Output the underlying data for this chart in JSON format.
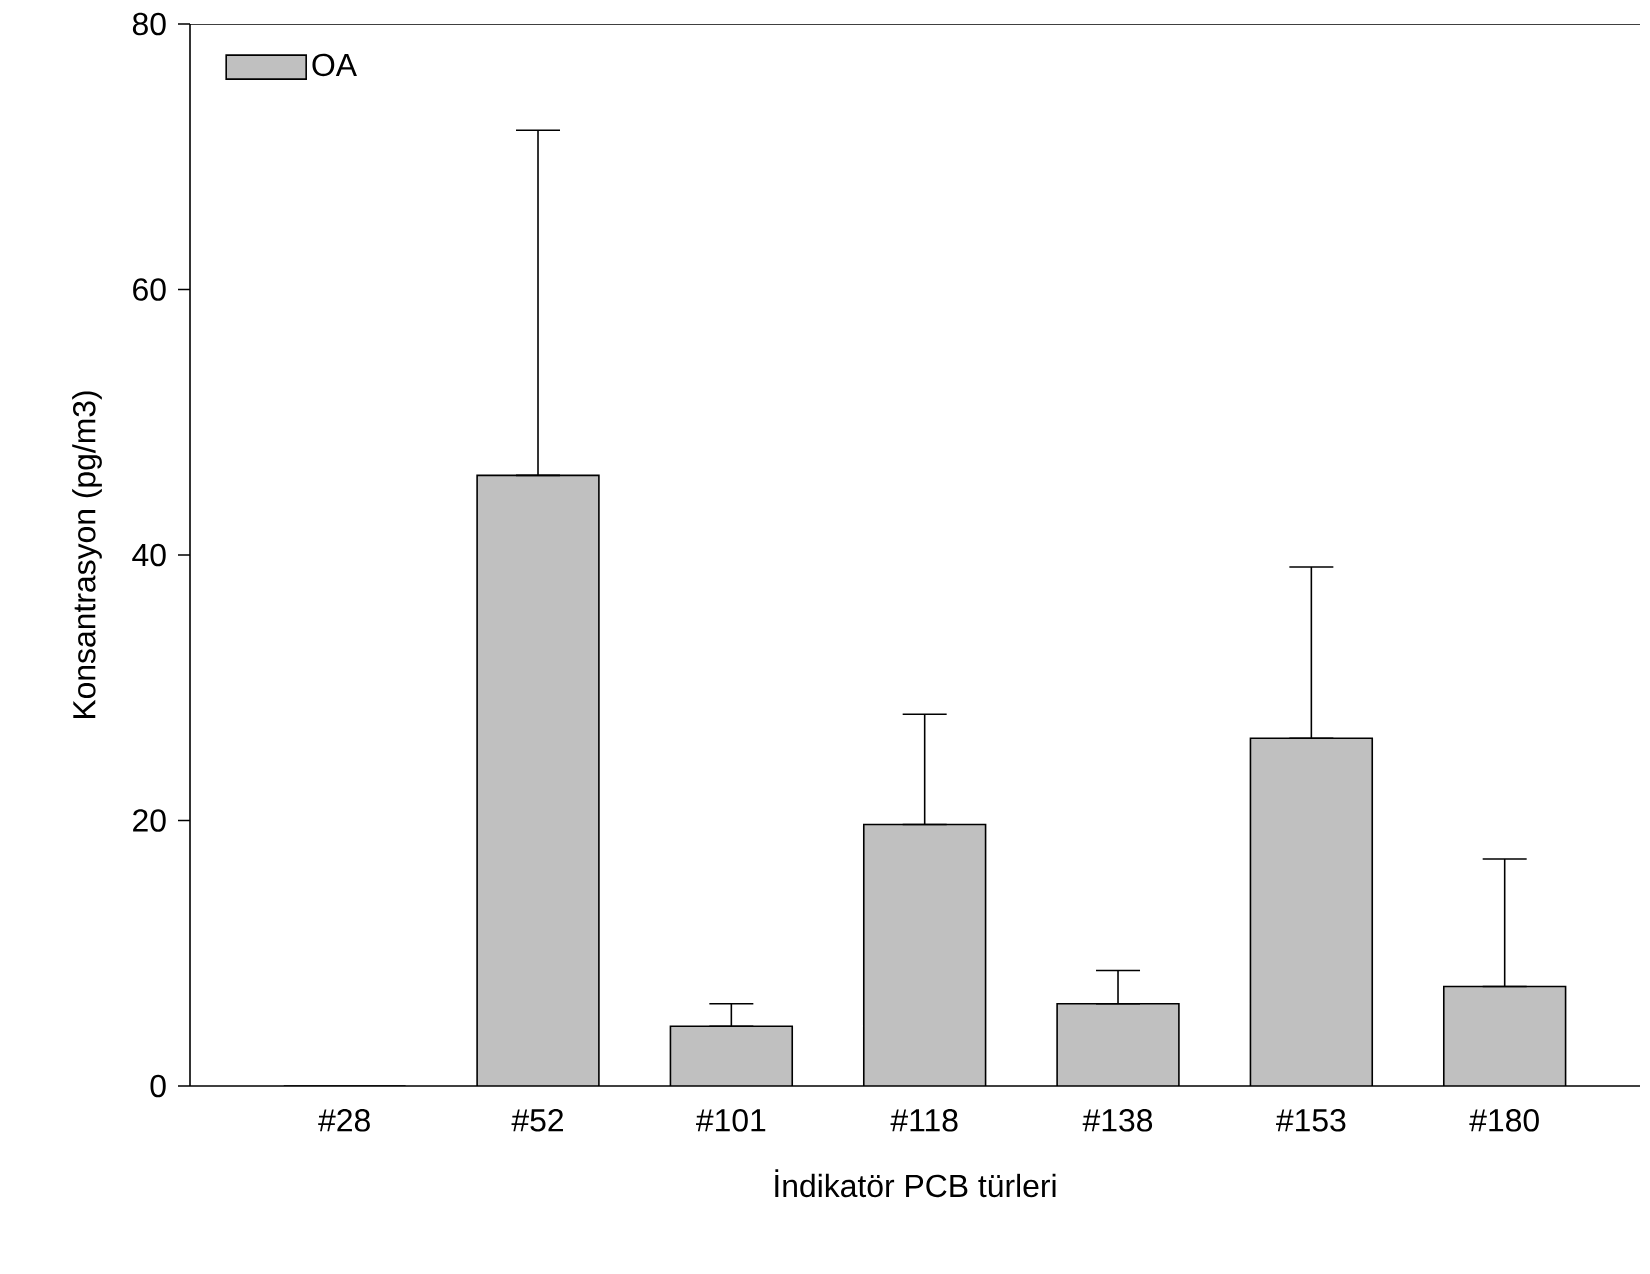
{
  "chart_data": {
    "type": "bar",
    "xlabel": "İndikatör PCB türleri",
    "ylabel": "Konsantrasyon (pg/m3)",
    "categories": [
      "#28",
      "#52",
      "#101",
      "#118",
      "#138",
      "#153",
      "#180"
    ],
    "series": [
      {
        "name": "OA",
        "color": "#c0c0c0",
        "values": [
          0,
          46,
          4.5,
          19.7,
          6.2,
          26.2,
          7.5
        ],
        "errors": [
          null,
          [
            46,
            72
          ],
          [
            4.5,
            6.2
          ],
          [
            19.7,
            28
          ],
          [
            6.2,
            8.7
          ],
          [
            26.2,
            39.1
          ],
          [
            7.5,
            17.1
          ]
        ]
      }
    ],
    "ylim": [
      0,
      80
    ],
    "yticks": [
      0,
      20,
      40,
      60,
      80
    ],
    "grid": false,
    "legend": "top left"
  }
}
